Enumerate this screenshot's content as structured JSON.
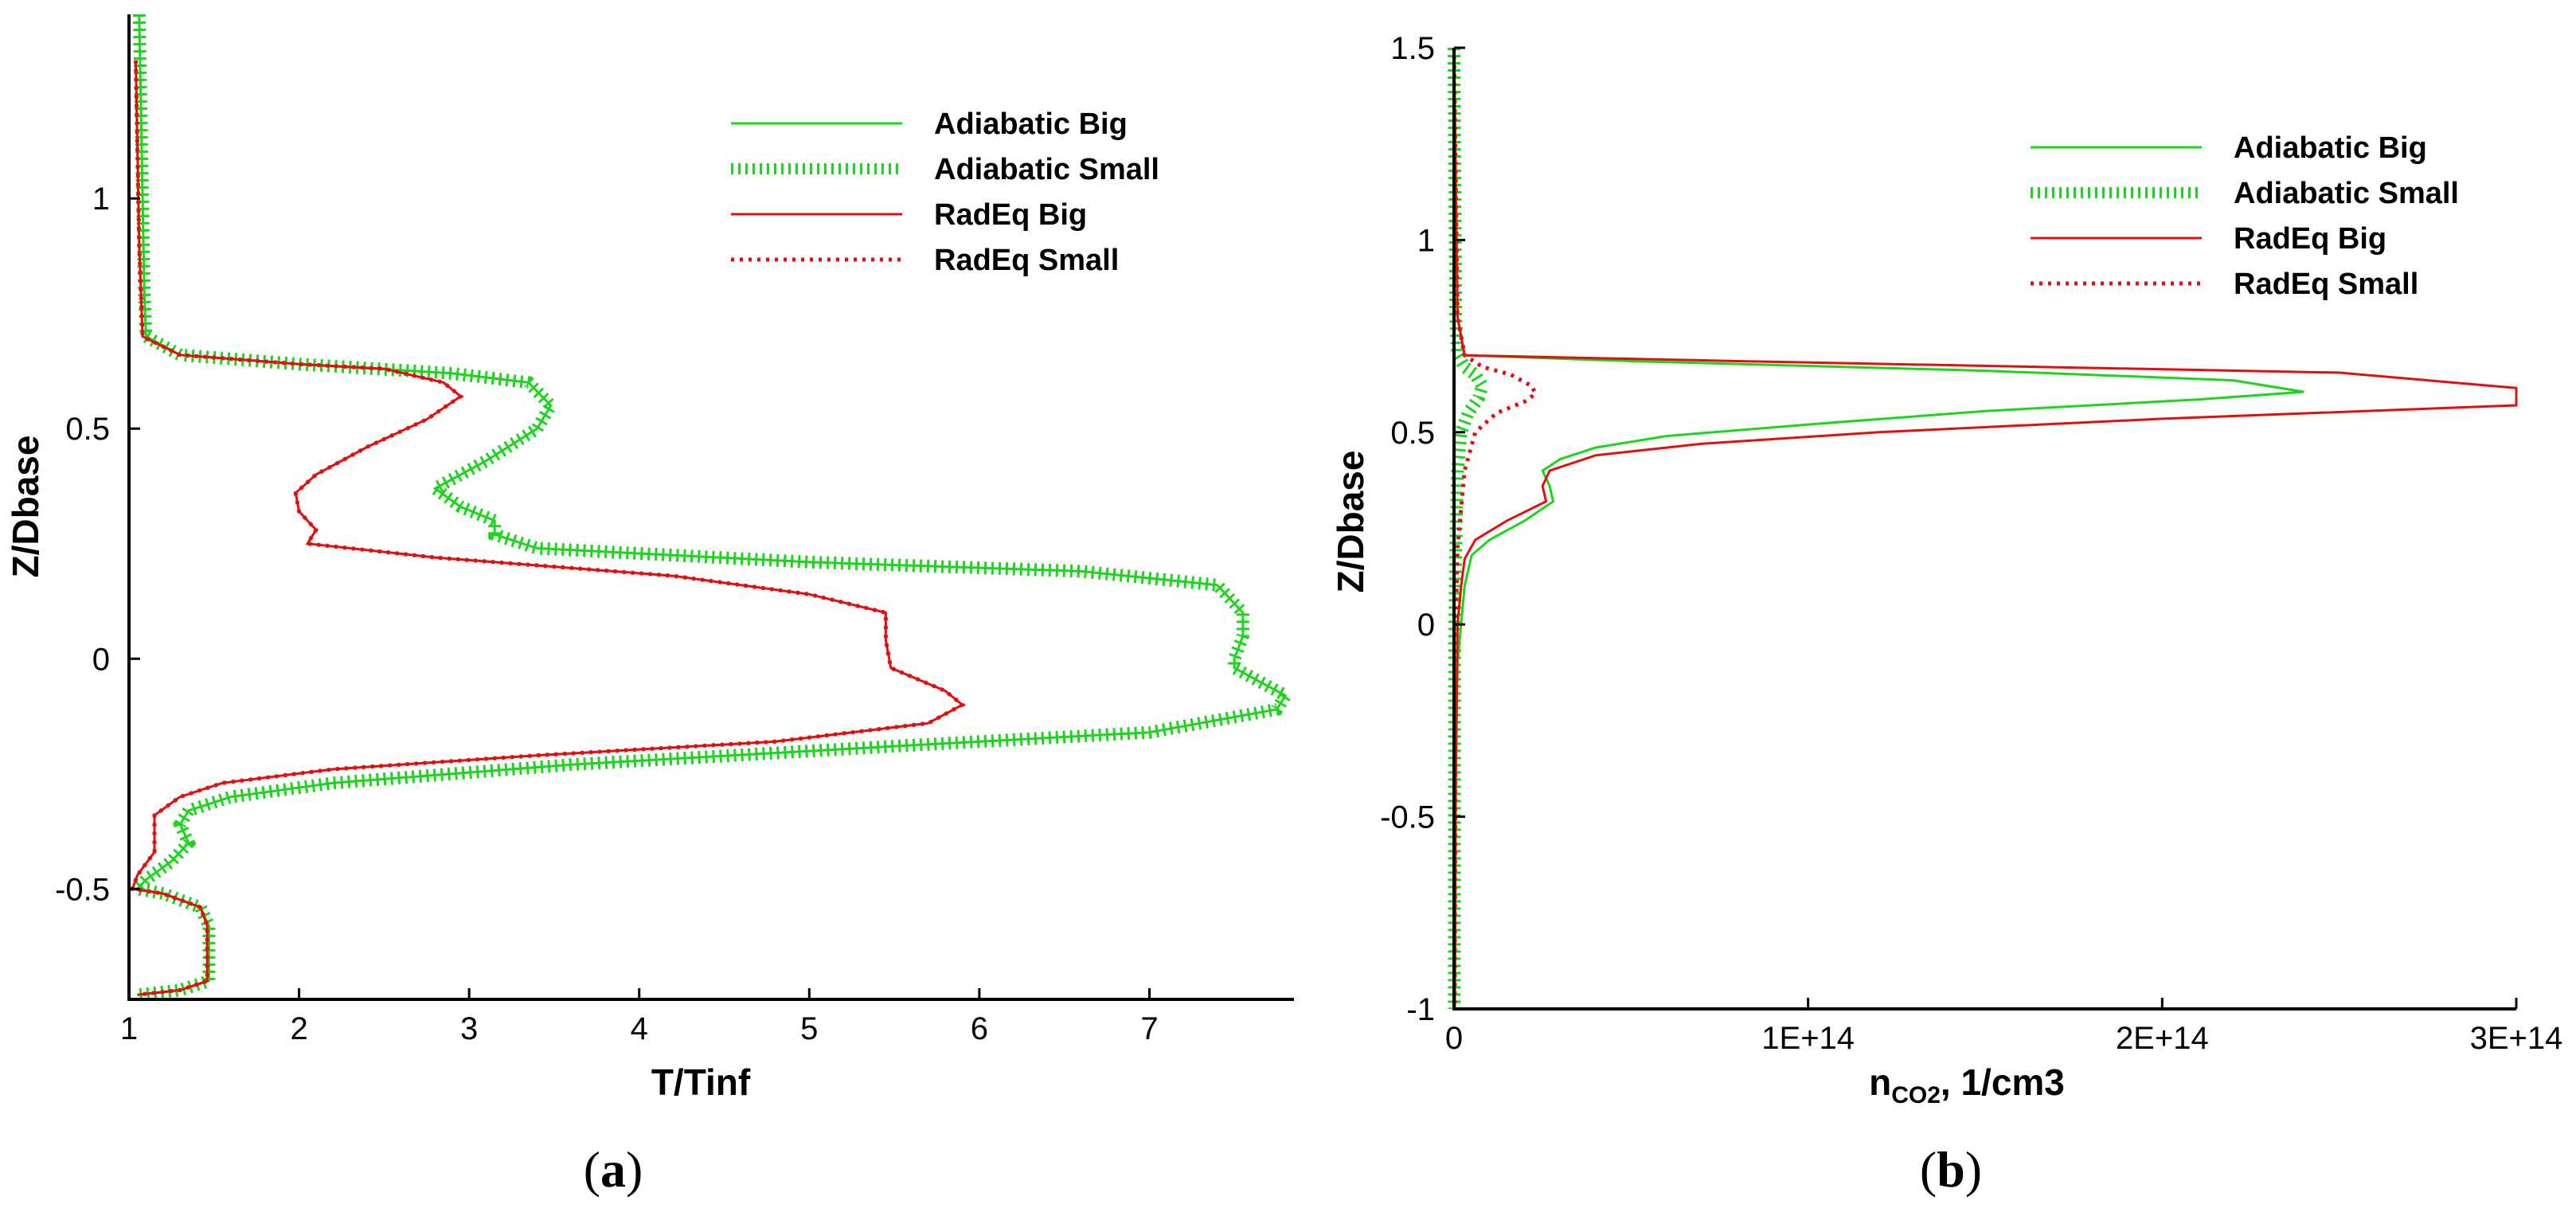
{
  "colors": {
    "green": "#1fd41f",
    "red": "#e01010"
  },
  "chart_data": [
    {
      "panel": "(a)",
      "type": "line",
      "xlabel": "T/Tinf",
      "ylabel": "Z/Dbase",
      "xlim": [
        1,
        7.85
      ],
      "ylim": [
        -0.74,
        1.4
      ],
      "xticks": [
        1,
        2,
        3,
        4,
        5,
        6,
        7
      ],
      "xtick_labels": [
        "1",
        "2",
        "3",
        "4",
        "5",
        "6",
        "7"
      ],
      "yticks": [
        -0.5,
        0,
        0.5,
        1
      ],
      "ytick_labels": [
        "-0.5",
        "0",
        "0.5",
        "1"
      ],
      "legend_position": "top-right",
      "series": [
        {
          "name": "Adiabatic Big",
          "color": "green",
          "style": "solid",
          "points": [
            [
              1.06,
              1.4
            ],
            [
              1.07,
              1.2
            ],
            [
              1.08,
              1.0
            ],
            [
              1.09,
              0.8
            ],
            [
              1.1,
              0.7
            ],
            [
              1.3,
              0.66
            ],
            [
              2.0,
              0.64
            ],
            [
              2.9,
              0.62
            ],
            [
              3.35,
              0.6
            ],
            [
              3.48,
              0.55
            ],
            [
              3.4,
              0.5
            ],
            [
              3.1,
              0.43
            ],
            [
              2.8,
              0.37
            ],
            [
              2.95,
              0.33
            ],
            [
              3.15,
              0.3
            ],
            [
              3.15,
              0.27
            ],
            [
              3.4,
              0.24
            ],
            [
              5.0,
              0.21
            ],
            [
              6.6,
              0.19
            ],
            [
              7.4,
              0.16
            ],
            [
              7.55,
              0.1
            ],
            [
              7.55,
              0.05
            ],
            [
              7.5,
              0.0
            ],
            [
              7.5,
              -0.02
            ],
            [
              7.8,
              -0.08
            ],
            [
              7.75,
              -0.11
            ],
            [
              7.0,
              -0.16
            ],
            [
              5.5,
              -0.19
            ],
            [
              3.6,
              -0.23
            ],
            [
              2.2,
              -0.27
            ],
            [
              1.6,
              -0.3
            ],
            [
              1.35,
              -0.33
            ],
            [
              1.3,
              -0.36
            ],
            [
              1.35,
              -0.4
            ],
            [
              1.25,
              -0.44
            ],
            [
              1.1,
              -0.48
            ],
            [
              1.05,
              -0.5
            ],
            [
              1.2,
              -0.51
            ],
            [
              1.42,
              -0.54
            ],
            [
              1.47,
              -0.58
            ],
            [
              1.47,
              -0.65
            ],
            [
              1.47,
              -0.7
            ],
            [
              1.3,
              -0.72
            ],
            [
              1.06,
              -0.73
            ]
          ]
        },
        {
          "name": "Adiabatic Small",
          "color": "green",
          "style": "hatched",
          "points": [
            [
              1.06,
              1.4
            ],
            [
              1.07,
              1.2
            ],
            [
              1.08,
              1.0
            ],
            [
              1.09,
              0.8
            ],
            [
              1.1,
              0.7
            ],
            [
              1.3,
              0.66
            ],
            [
              2.0,
              0.64
            ],
            [
              2.9,
              0.62
            ],
            [
              3.35,
              0.6
            ],
            [
              3.48,
              0.55
            ],
            [
              3.4,
              0.5
            ],
            [
              3.1,
              0.43
            ],
            [
              2.8,
              0.37
            ],
            [
              2.95,
              0.33
            ],
            [
              3.15,
              0.3
            ],
            [
              3.15,
              0.27
            ],
            [
              3.4,
              0.24
            ],
            [
              5.0,
              0.21
            ],
            [
              6.6,
              0.19
            ],
            [
              7.4,
              0.16
            ],
            [
              7.55,
              0.1
            ],
            [
              7.55,
              0.05
            ],
            [
              7.5,
              0.0
            ],
            [
              7.5,
              -0.02
            ],
            [
              7.8,
              -0.08
            ],
            [
              7.75,
              -0.11
            ],
            [
              7.0,
              -0.16
            ],
            [
              5.5,
              -0.19
            ],
            [
              3.6,
              -0.23
            ],
            [
              2.2,
              -0.27
            ],
            [
              1.6,
              -0.3
            ],
            [
              1.35,
              -0.33
            ],
            [
              1.3,
              -0.36
            ],
            [
              1.35,
              -0.4
            ],
            [
              1.25,
              -0.44
            ],
            [
              1.1,
              -0.48
            ],
            [
              1.05,
              -0.5
            ],
            [
              1.2,
              -0.51
            ],
            [
              1.42,
              -0.54
            ],
            [
              1.47,
              -0.58
            ],
            [
              1.47,
              -0.65
            ],
            [
              1.47,
              -0.7
            ],
            [
              1.3,
              -0.72
            ],
            [
              1.06,
              -0.73
            ]
          ]
        },
        {
          "name": "RadEq Big",
          "color": "red",
          "style": "solid",
          "points": [
            [
              1.04,
              1.3
            ],
            [
              1.05,
              1.1
            ],
            [
              1.06,
              0.9
            ],
            [
              1.08,
              0.7
            ],
            [
              1.3,
              0.66
            ],
            [
              2.0,
              0.64
            ],
            [
              2.5,
              0.63
            ],
            [
              2.85,
              0.6
            ],
            [
              2.95,
              0.57
            ],
            [
              2.75,
              0.52
            ],
            [
              2.4,
              0.46
            ],
            [
              2.1,
              0.4
            ],
            [
              1.98,
              0.36
            ],
            [
              2.0,
              0.32
            ],
            [
              2.1,
              0.28
            ],
            [
              2.05,
              0.25
            ],
            [
              2.8,
              0.22
            ],
            [
              4.2,
              0.18
            ],
            [
              5.0,
              0.14
            ],
            [
              5.45,
              0.1
            ],
            [
              5.45,
              0.04
            ],
            [
              5.48,
              -0.02
            ],
            [
              5.8,
              -0.07
            ],
            [
              5.9,
              -0.1
            ],
            [
              5.7,
              -0.14
            ],
            [
              4.8,
              -0.18
            ],
            [
              3.4,
              -0.21
            ],
            [
              2.2,
              -0.24
            ],
            [
              1.55,
              -0.27
            ],
            [
              1.3,
              -0.3
            ],
            [
              1.15,
              -0.34
            ],
            [
              1.15,
              -0.42
            ],
            [
              1.05,
              -0.47
            ],
            [
              1.02,
              -0.5
            ],
            [
              1.2,
              -0.51
            ],
            [
              1.42,
              -0.54
            ],
            [
              1.46,
              -0.58
            ],
            [
              1.46,
              -0.65
            ],
            [
              1.46,
              -0.7
            ],
            [
              1.3,
              -0.72
            ],
            [
              1.05,
              -0.73
            ]
          ]
        },
        {
          "name": "RadEq Small",
          "color": "red",
          "style": "dotted",
          "points": [
            [
              1.04,
              1.3
            ],
            [
              1.05,
              1.1
            ],
            [
              1.06,
              0.9
            ],
            [
              1.08,
              0.7
            ],
            [
              1.3,
              0.66
            ],
            [
              2.0,
              0.64
            ],
            [
              2.5,
              0.63
            ],
            [
              2.85,
              0.6
            ],
            [
              2.95,
              0.57
            ],
            [
              2.75,
              0.52
            ],
            [
              2.4,
              0.46
            ],
            [
              2.1,
              0.4
            ],
            [
              1.98,
              0.36
            ],
            [
              2.0,
              0.32
            ],
            [
              2.1,
              0.28
            ],
            [
              2.05,
              0.25
            ],
            [
              2.8,
              0.22
            ],
            [
              4.2,
              0.18
            ],
            [
              5.0,
              0.14
            ],
            [
              5.45,
              0.1
            ],
            [
              5.45,
              0.04
            ],
            [
              5.48,
              -0.02
            ],
            [
              5.8,
              -0.07
            ],
            [
              5.9,
              -0.1
            ],
            [
              5.7,
              -0.14
            ],
            [
              4.8,
              -0.18
            ],
            [
              3.4,
              -0.21
            ],
            [
              2.2,
              -0.24
            ],
            [
              1.55,
              -0.27
            ],
            [
              1.3,
              -0.3
            ],
            [
              1.15,
              -0.34
            ],
            [
              1.15,
              -0.42
            ],
            [
              1.05,
              -0.47
            ],
            [
              1.02,
              -0.5
            ],
            [
              1.2,
              -0.51
            ],
            [
              1.42,
              -0.54
            ],
            [
              1.46,
              -0.58
            ],
            [
              1.46,
              -0.65
            ],
            [
              1.46,
              -0.7
            ],
            [
              1.3,
              -0.72
            ],
            [
              1.05,
              -0.73
            ]
          ]
        }
      ]
    },
    {
      "panel": "(b)",
      "type": "line",
      "xlabel": "n",
      "xlabel_subscript": "CO2",
      "xlabel_suffix": ", 1/cm3",
      "ylabel": "Z/Dbase",
      "xlim": [
        0,
        300000000000000.0
      ],
      "ylim": [
        -1,
        1.5
      ],
      "xticks": [
        0,
        100000000000000.0,
        200000000000000.0,
        300000000000000.0
      ],
      "xtick_labels": [
        "0",
        "1E+14",
        "2E+14",
        "3E+14"
      ],
      "yticks": [
        -1,
        -0.5,
        0,
        0.5,
        1,
        1.5
      ],
      "ytick_labels": [
        "-1",
        "-0.5",
        "0",
        "0.5",
        "1",
        "1.5"
      ],
      "legend_position": "top-right",
      "series": [
        {
          "name": "Adiabatic Big",
          "color": "green",
          "style": "solid",
          "points": [
            [
              0,
              1.5
            ],
            [
              1000000000000.0,
              0.8
            ],
            [
              3000000000000.0,
              0.7
            ],
            [
              50000000000000.0,
              0.685
            ],
            [
              150000000000000.0,
              0.66
            ],
            [
              220000000000000.0,
              0.635
            ],
            [
              240000000000000.0,
              0.605
            ],
            [
              210000000000000.0,
              0.585
            ],
            [
              150000000000000.0,
              0.555
            ],
            [
              100000000000000.0,
              0.52
            ],
            [
              60000000000000.0,
              0.49
            ],
            [
              40000000000000.0,
              0.46
            ],
            [
              30000000000000.0,
              0.43
            ],
            [
              25000000000000.0,
              0.4
            ],
            [
              27000000000000.0,
              0.36
            ],
            [
              28000000000000.0,
              0.32
            ],
            [
              20000000000000.0,
              0.27
            ],
            [
              10000000000000.0,
              0.22
            ],
            [
              5000000000000.0,
              0.18
            ],
            [
              3000000000000.0,
              0.1
            ],
            [
              2000000000000.0,
              0.0
            ],
            [
              1000000000000.0,
              -0.1
            ],
            [
              500000000000.0,
              -0.4
            ],
            [
              200000000000.0,
              -1.0
            ]
          ]
        },
        {
          "name": "Adiabatic Small",
          "color": "green",
          "style": "hatched",
          "points": [
            [
              0,
              1.5
            ],
            [
              500000000000.0,
              0.8
            ],
            [
              1000000000000.0,
              0.7
            ],
            [
              3000000000000.0,
              0.67
            ],
            [
              6000000000000.0,
              0.65
            ],
            [
              8000000000000.0,
              0.62
            ],
            [
              7000000000000.0,
              0.59
            ],
            [
              4000000000000.0,
              0.55
            ],
            [
              2000000000000.0,
              0.5
            ],
            [
              1000000000000.0,
              0.4
            ],
            [
              500000000000.0,
              0.2
            ],
            [
              200000000000.0,
              0.0
            ],
            [
              100000000000.0,
              -1.0
            ]
          ]
        },
        {
          "name": "RadEq Big",
          "color": "red",
          "style": "solid",
          "points": [
            [
              0,
              1.5
            ],
            [
              1000000000000.0,
              0.8
            ],
            [
              3000000000000.0,
              0.7
            ],
            [
              80000000000000.0,
              0.685
            ],
            [
              250000000000000.0,
              0.655
            ],
            [
              300000000000000.0,
              0.615
            ],
            [
              300000000000000.0,
              0.57
            ],
            [
              200000000000000.0,
              0.535
            ],
            [
              120000000000000.0,
              0.5
            ],
            [
              70000000000000.0,
              0.47
            ],
            [
              40000000000000.0,
              0.44
            ],
            [
              27000000000000.0,
              0.4
            ],
            [
              25000000000000.0,
              0.36
            ],
            [
              26000000000000.0,
              0.32
            ],
            [
              15000000000000.0,
              0.27
            ],
            [
              6000000000000.0,
              0.22
            ],
            [
              3000000000000.0,
              0.17
            ],
            [
              2000000000000.0,
              0.1
            ],
            [
              1000000000000.0,
              0.0
            ],
            [
              500000000000.0,
              -0.4
            ],
            [
              200000000000.0,
              -1.0
            ]
          ]
        },
        {
          "name": "RadEq Small",
          "color": "red",
          "style": "dotted",
          "points": [
            [
              0,
              1.5
            ],
            [
              1000000000000.0,
              0.8
            ],
            [
              3000000000000.0,
              0.7
            ],
            [
              8000000000000.0,
              0.67
            ],
            [
              16000000000000.0,
              0.65
            ],
            [
              22000000000000.0,
              0.62
            ],
            [
              23000000000000.0,
              0.6
            ],
            [
              20000000000000.0,
              0.58
            ],
            [
              12000000000000.0,
              0.55
            ],
            [
              6000000000000.0,
              0.5
            ],
            [
              3000000000000.0,
              0.4
            ],
            [
              1000000000000.0,
              0.2
            ],
            [
              500000000000.0,
              0.0
            ],
            [
              200000000000.0,
              -1.0
            ]
          ]
        }
      ]
    }
  ]
}
